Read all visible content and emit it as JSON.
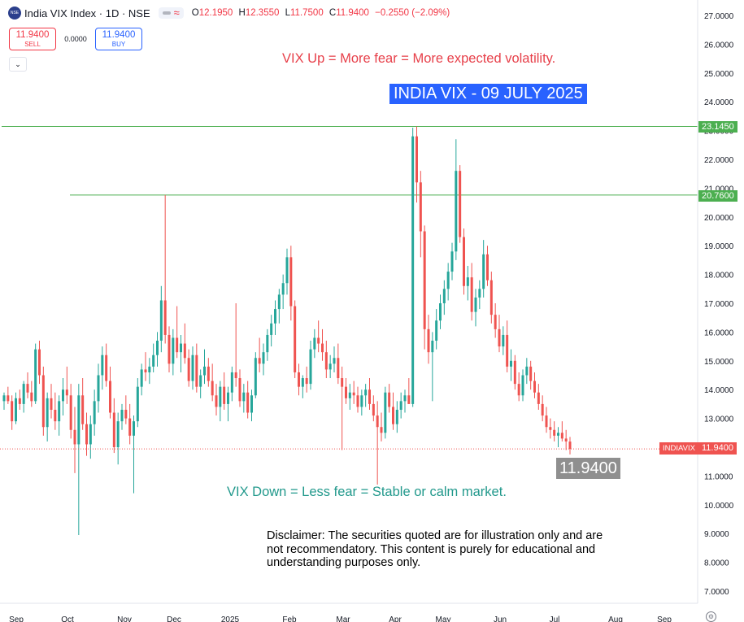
{
  "header": {
    "title": "India VIX Index · 1D · NSE",
    "ohlc": [
      {
        "k": "O",
        "v": "12.1950"
      },
      {
        "k": "H",
        "v": "12.3550"
      },
      {
        "k": "L",
        "v": "11.7500"
      },
      {
        "k": "C",
        "v": "11.9400"
      }
    ],
    "change": "−0.2550 (−2.09%)"
  },
  "trade": {
    "sell_price": "11.9400",
    "sell_label": "SELL",
    "spread": "0.0000",
    "buy_price": "11.9400",
    "buy_label": "BUY"
  },
  "annotations": {
    "up_note": "VIX Up = More fear = More expected volatility.",
    "down_note": "VIX Down = Less fear = Stable or calm market.",
    "title_box": "INDIA VIX - 09 JULY 2025",
    "last_price_big": "11.9400",
    "disclaimer": "Disclaimer: The securities quoted are for illustration only and are not recommendatory. This content is purely for educational and understanding purposes only."
  },
  "price_labels": {
    "level_high": "23.1450",
    "level_mid": "20.7600",
    "ticker": "INDIAVIX",
    "last": "11.9400"
  },
  "colors": {
    "up": "#26a69a",
    "down": "#ef5350",
    "level_line": "#4caf50",
    "accent_blue": "#2962ff"
  },
  "chart_data": {
    "type": "candlestick",
    "ylim": [
      6.6,
      27.2
    ],
    "y_ticks": [
      "7.0000",
      "8.0000",
      "9.0000",
      "10.0000",
      "11.0000",
      "12.0000",
      "13.0000",
      "14.0000",
      "15.0000",
      "16.0000",
      "17.0000",
      "18.0000",
      "19.0000",
      "20.0000",
      "21.0000",
      "22.0000",
      "23.0000",
      "24.0000",
      "25.0000",
      "26.0000",
      "27.0000"
    ],
    "x_ticks": [
      "Sep",
      "Oct",
      "Nov",
      "Dec",
      "2025",
      "Feb",
      "Mar",
      "Apr",
      "May",
      "Jun",
      "Jul",
      "Aug",
      "Sep"
    ],
    "x_tick_positions": [
      0,
      1,
      2,
      3,
      4,
      5,
      6,
      7,
      8,
      9,
      10,
      11,
      12
    ],
    "horizontal_levels": [
      23.145,
      20.76
    ],
    "last_price": 11.94,
    "candles": [
      [
        13.6,
        13.9,
        13.3,
        13.8
      ],
      [
        13.8,
        14.1,
        13.5,
        13.6
      ],
      [
        13.6,
        13.8,
        12.6,
        12.9
      ],
      [
        12.9,
        13.9,
        12.8,
        13.7
      ],
      [
        13.7,
        14.0,
        13.3,
        13.5
      ],
      [
        13.5,
        14.3,
        13.2,
        14.2
      ],
      [
        14.2,
        14.6,
        13.7,
        13.9
      ],
      [
        13.9,
        14.3,
        13.4,
        13.6
      ],
      [
        13.6,
        15.6,
        13.5,
        15.4
      ],
      [
        15.4,
        15.7,
        14.2,
        14.5
      ],
      [
        14.5,
        14.8,
        12.4,
        12.7
      ],
      [
        12.7,
        13.9,
        12.2,
        13.7
      ],
      [
        13.7,
        14.2,
        13.0,
        13.3
      ],
      [
        13.3,
        13.9,
        12.6,
        12.9
      ],
      [
        12.9,
        13.8,
        12.4,
        13.6
      ],
      [
        13.6,
        14.4,
        13.1,
        14.0
      ],
      [
        14.0,
        14.8,
        13.5,
        13.8
      ],
      [
        13.8,
        14.2,
        12.3,
        12.6
      ],
      [
        12.6,
        13.4,
        11.1,
        12.1
      ],
      [
        12.1,
        14.2,
        8.95,
        13.8
      ],
      [
        13.8,
        14.4,
        12.6,
        12.8
      ],
      [
        12.8,
        13.2,
        11.7,
        12.1
      ],
      [
        12.1,
        13.1,
        11.6,
        12.8
      ],
      [
        12.8,
        14.0,
        12.4,
        13.6
      ],
      [
        13.6,
        14.9,
        13.2,
        14.5
      ],
      [
        14.5,
        15.5,
        14.0,
        15.2
      ],
      [
        15.2,
        15.6,
        14.1,
        14.3
      ],
      [
        14.3,
        14.8,
        13.0,
        13.2
      ],
      [
        13.2,
        13.7,
        11.8,
        12.0
      ],
      [
        12.0,
        13.2,
        11.4,
        12.9
      ],
      [
        12.9,
        13.5,
        12.6,
        13.3
      ],
      [
        13.3,
        13.8,
        12.8,
        13.0
      ],
      [
        13.0,
        13.5,
        12.1,
        12.4
      ],
      [
        12.4,
        13.1,
        10.4,
        12.9
      ],
      [
        12.9,
        14.4,
        12.7,
        14.1
      ],
      [
        14.1,
        14.9,
        13.8,
        14.7
      ],
      [
        14.7,
        15.3,
        14.3,
        14.6
      ],
      [
        14.6,
        15.1,
        14.2,
        14.8
      ],
      [
        14.8,
        15.6,
        14.6,
        15.2
      ],
      [
        15.2,
        16.0,
        14.8,
        15.7
      ],
      [
        15.7,
        17.6,
        15.3,
        17.1
      ],
      [
        17.1,
        20.76,
        15.6,
        15.9
      ],
      [
        15.9,
        16.2,
        14.6,
        14.9
      ],
      [
        14.9,
        16.1,
        14.5,
        15.8
      ],
      [
        15.8,
        16.9,
        15.1,
        15.3
      ],
      [
        15.3,
        15.9,
        14.6,
        15.6
      ],
      [
        15.6,
        16.3,
        14.9,
        15.1
      ],
      [
        15.1,
        15.4,
        14.1,
        14.3
      ],
      [
        14.3,
        15.5,
        14.0,
        15.2
      ],
      [
        15.2,
        15.6,
        13.9,
        14.1
      ],
      [
        14.1,
        14.7,
        13.7,
        14.5
      ],
      [
        14.5,
        15.4,
        14.2,
        14.8
      ],
      [
        14.8,
        15.1,
        14.1,
        14.3
      ],
      [
        14.3,
        14.9,
        13.6,
        13.8
      ],
      [
        13.8,
        14.2,
        13.1,
        13.4
      ],
      [
        13.4,
        14.3,
        12.9,
        14.1
      ],
      [
        14.1,
        14.6,
        13.3,
        13.5
      ],
      [
        13.5,
        14.1,
        12.9,
        13.9
      ],
      [
        13.9,
        14.8,
        13.6,
        14.6
      ],
      [
        14.6,
        17.0,
        14.1,
        14.4
      ],
      [
        14.4,
        14.7,
        13.4,
        13.6
      ],
      [
        13.6,
        14.2,
        13.2,
        13.9
      ],
      [
        13.9,
        14.3,
        13.0,
        13.2
      ],
      [
        13.2,
        14.0,
        12.9,
        13.8
      ],
      [
        13.8,
        15.3,
        13.7,
        15.1
      ],
      [
        15.1,
        15.8,
        14.6,
        14.9
      ],
      [
        14.9,
        15.6,
        14.5,
        15.3
      ],
      [
        15.3,
        16.1,
        15.0,
        15.9
      ],
      [
        15.9,
        16.6,
        15.5,
        16.3
      ],
      [
        16.3,
        17.1,
        15.9,
        16.8
      ],
      [
        16.8,
        17.5,
        16.3,
        17.3
      ],
      [
        17.3,
        18.0,
        16.8,
        17.7
      ],
      [
        17.7,
        18.9,
        17.3,
        18.6
      ],
      [
        18.6,
        19.0,
        16.4,
        16.9
      ],
      [
        16.9,
        17.1,
        14.4,
        14.6
      ],
      [
        14.6,
        14.9,
        13.8,
        14.1
      ],
      [
        14.1,
        14.5,
        13.7,
        14.4
      ],
      [
        14.4,
        14.8,
        13.9,
        14.2
      ],
      [
        14.2,
        15.7,
        14.0,
        15.4
      ],
      [
        15.4,
        16.1,
        15.1,
        15.8
      ],
      [
        15.8,
        16.4,
        15.3,
        15.6
      ],
      [
        15.6,
        16.1,
        15.0,
        15.3
      ],
      [
        15.3,
        15.7,
        14.4,
        14.7
      ],
      [
        14.7,
        15.2,
        14.4,
        14.9
      ],
      [
        14.9,
        15.5,
        14.6,
        15.1
      ],
      [
        15.1,
        15.6,
        14.2,
        14.4
      ],
      [
        14.4,
        14.8,
        11.9,
        14.1
      ],
      [
        14.1,
        14.4,
        13.5,
        13.7
      ],
      [
        13.7,
        14.2,
        13.3,
        13.9
      ],
      [
        13.9,
        14.3,
        13.5,
        13.8
      ],
      [
        13.8,
        14.1,
        13.2,
        13.4
      ],
      [
        13.4,
        14.0,
        13.1,
        13.8
      ],
      [
        13.8,
        14.2,
        13.4,
        14.0
      ],
      [
        14.0,
        14.4,
        13.3,
        13.5
      ],
      [
        13.5,
        13.8,
        12.9,
        13.1
      ],
      [
        13.1,
        13.6,
        10.7,
        12.7
      ],
      [
        12.7,
        13.2,
        12.2,
        12.5
      ],
      [
        12.5,
        14.1,
        12.3,
        13.9
      ],
      [
        13.9,
        14.2,
        13.2,
        13.4
      ],
      [
        13.4,
        13.9,
        12.6,
        12.8
      ],
      [
        12.8,
        13.6,
        12.5,
        13.3
      ],
      [
        13.3,
        13.9,
        13.0,
        13.6
      ],
      [
        13.6,
        14.0,
        13.2,
        13.8
      ],
      [
        13.8,
        14.4,
        13.5,
        13.5
      ],
      [
        13.5,
        23.1,
        13.4,
        22.8
      ],
      [
        22.8,
        23.145,
        20.5,
        21.2
      ],
      [
        21.2,
        21.6,
        18.6,
        19.5
      ],
      [
        19.5,
        19.7,
        15.4,
        16.1
      ],
      [
        16.1,
        16.6,
        14.9,
        15.3
      ],
      [
        15.3,
        16.0,
        13.6,
        15.7
      ],
      [
        15.7,
        16.8,
        15.4,
        16.4
      ],
      [
        16.4,
        17.3,
        16.1,
        17.0
      ],
      [
        17.0,
        17.8,
        16.6,
        17.5
      ],
      [
        17.5,
        18.4,
        17.1,
        18.1
      ],
      [
        18.1,
        19.1,
        17.8,
        18.8
      ],
      [
        18.8,
        22.7,
        18.5,
        21.6
      ],
      [
        21.6,
        21.8,
        19.1,
        19.3
      ],
      [
        19.3,
        19.6,
        17.3,
        17.6
      ],
      [
        17.6,
        18.3,
        17.1,
        17.9
      ],
      [
        17.9,
        18.4,
        16.4,
        16.7
      ],
      [
        16.7,
        17.5,
        16.2,
        17.2
      ],
      [
        17.2,
        17.8,
        16.8,
        17.5
      ],
      [
        17.5,
        19.2,
        17.2,
        18.7
      ],
      [
        18.7,
        19.0,
        17.6,
        17.8
      ],
      [
        17.8,
        18.1,
        16.3,
        16.6
      ],
      [
        16.6,
        17.0,
        15.8,
        16.1
      ],
      [
        16.1,
        16.6,
        15.3,
        15.5
      ],
      [
        15.5,
        16.2,
        15.2,
        15.9
      ],
      [
        15.9,
        16.4,
        14.6,
        14.8
      ],
      [
        14.8,
        15.4,
        14.3,
        15.0
      ],
      [
        15.0,
        15.2,
        14.0,
        14.2
      ],
      [
        14.2,
        14.6,
        13.6,
        13.8
      ],
      [
        13.8,
        14.7,
        13.6,
        14.5
      ],
      [
        14.5,
        15.1,
        14.2,
        14.8
      ],
      [
        14.8,
        15.0,
        14.0,
        14.3
      ],
      [
        14.3,
        14.6,
        13.7,
        13.9
      ],
      [
        13.9,
        14.2,
        13.3,
        13.5
      ],
      [
        13.5,
        13.8,
        12.9,
        13.1
      ],
      [
        13.1,
        13.4,
        12.5,
        12.7
      ],
      [
        12.7,
        13.0,
        12.3,
        12.6
      ],
      [
        12.6,
        12.9,
        12.2,
        12.4
      ],
      [
        12.4,
        12.7,
        12.0,
        12.5
      ],
      [
        12.5,
        12.9,
        12.2,
        12.3
      ],
      [
        12.3,
        12.6,
        11.9,
        12.2
      ],
      [
        12.195,
        12.355,
        11.75,
        11.94
      ]
    ]
  }
}
